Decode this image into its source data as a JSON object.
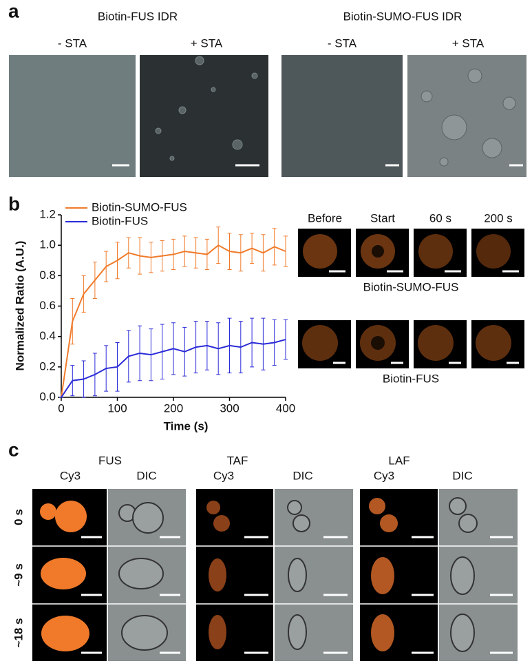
{
  "panel_a": {
    "label": "a",
    "groups": [
      {
        "title": "Biotin-FUS IDR",
        "conditions": [
          "- STA",
          "+ STA"
        ]
      },
      {
        "title": "Biotin-SUMO-FUS IDR",
        "conditions": [
          "- STA",
          "+ STA"
        ]
      }
    ]
  },
  "panel_b": {
    "label": "b",
    "timepoints": [
      "Before",
      "Start",
      "60 s",
      "200 s"
    ],
    "rows": [
      "Biotin-SUMO-FUS",
      "Biotin-FUS"
    ]
  },
  "panel_c": {
    "label": "c",
    "groups": [
      {
        "title": "FUS",
        "channels": [
          "Cy3",
          "DIC"
        ]
      },
      {
        "title": "TAF",
        "channels": [
          "Cy3",
          "DIC"
        ]
      },
      {
        "title": "LAF",
        "channels": [
          "Cy3",
          "DIC"
        ]
      }
    ],
    "times": [
      "0 s",
      "~9 s",
      "~18 s"
    ]
  },
  "chart_data": {
    "type": "line",
    "x_label": "Time (s)",
    "y_label": "Normalized Ratio (A.U.)",
    "x": [
      0,
      20,
      40,
      60,
      80,
      100,
      120,
      140,
      160,
      180,
      200,
      220,
      240,
      260,
      280,
      300,
      320,
      340,
      360,
      380,
      400
    ],
    "series": [
      {
        "name": "Biotin-SUMO-FUS",
        "color": "#f07a2a",
        "values": [
          0,
          0.5,
          0.68,
          0.77,
          0.86,
          0.9,
          0.95,
          0.93,
          0.92,
          0.93,
          0.94,
          0.96,
          0.95,
          0.94,
          1.0,
          0.96,
          0.95,
          0.98,
          0.95,
          0.99,
          0.96
        ],
        "errors": [
          0,
          0.15,
          0.12,
          0.12,
          0.1,
          0.12,
          0.1,
          0.12,
          0.1,
          0.1,
          0.1,
          0.1,
          0.1,
          0.1,
          0.12,
          0.12,
          0.12,
          0.1,
          0.12,
          0.12,
          0.1
        ]
      },
      {
        "name": "Biotin-FUS",
        "color": "#2a2ad8",
        "values": [
          0,
          0.11,
          0.12,
          0.15,
          0.19,
          0.2,
          0.27,
          0.29,
          0.28,
          0.3,
          0.32,
          0.3,
          0.33,
          0.34,
          0.32,
          0.34,
          0.33,
          0.36,
          0.35,
          0.36,
          0.38
        ],
        "errors": [
          0,
          0.1,
          0.12,
          0.14,
          0.15,
          0.16,
          0.17,
          0.18,
          0.17,
          0.18,
          0.17,
          0.16,
          0.17,
          0.16,
          0.17,
          0.18,
          0.17,
          0.16,
          0.17,
          0.15,
          0.13
        ]
      }
    ],
    "xlim": [
      0,
      400
    ],
    "xticks": [
      0,
      100,
      200,
      300,
      400
    ],
    "ylim": [
      0,
      1.2
    ],
    "yticks": [
      {
        "value": 0,
        "label": "0.0"
      },
      0.2,
      0.4,
      0.6,
      0.8,
      {
        "value": 1,
        "label": "1.0"
      },
      1.2
    ],
    "legend": "upper left"
  }
}
